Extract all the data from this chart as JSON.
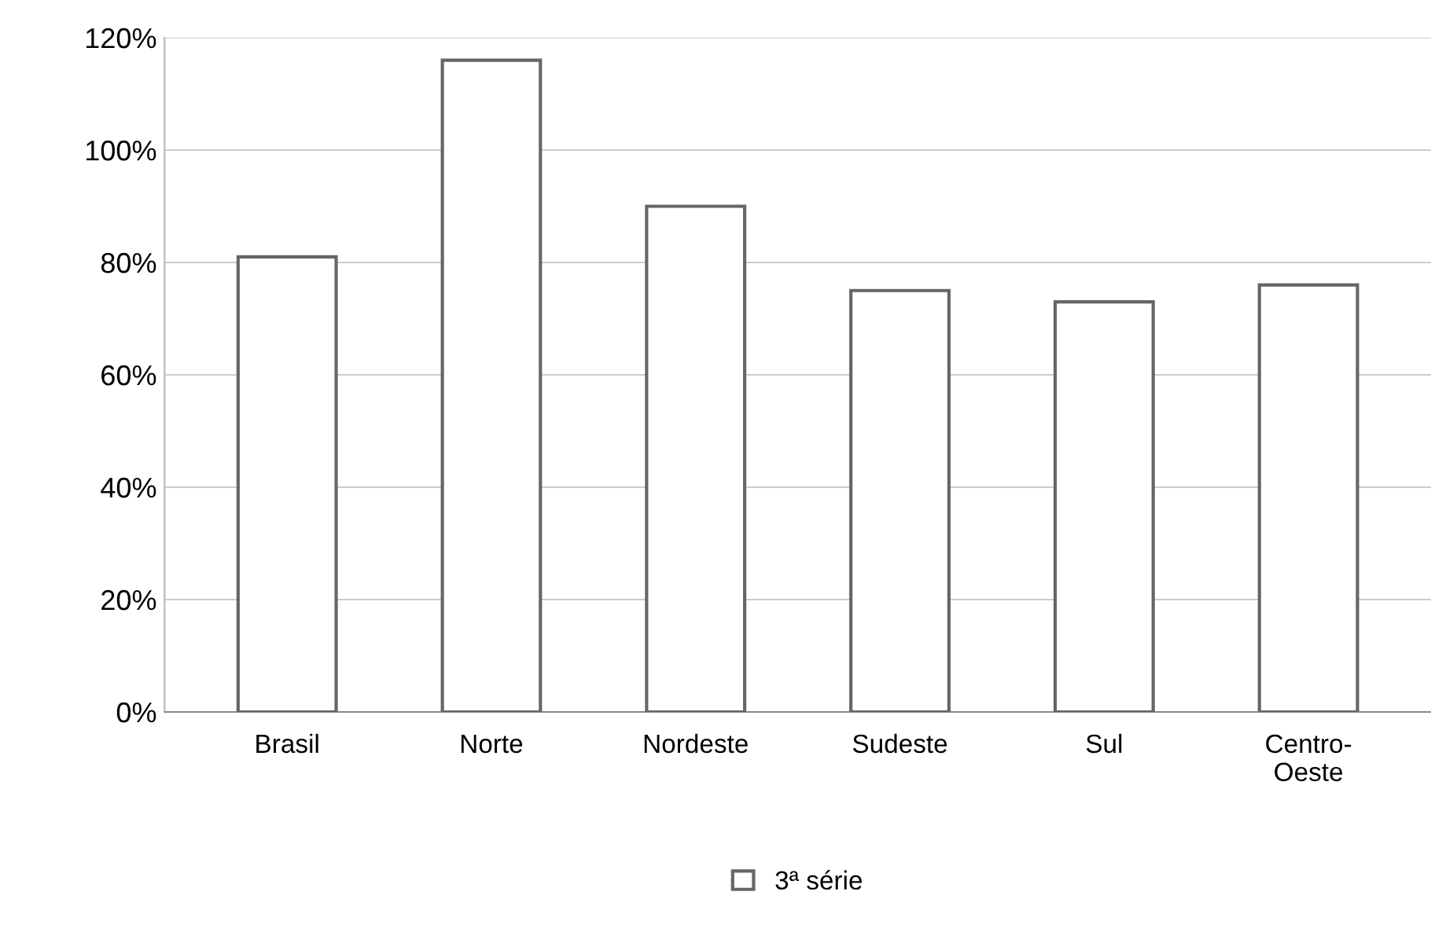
{
  "chart_data": {
    "type": "bar",
    "categories": [
      "Brasil",
      "Norte",
      "Nordeste",
      "Sudeste",
      "Sul",
      "Centro-\nOeste"
    ],
    "series": [
      {
        "name": "3ª série",
        "color": "#ffffff",
        "values": [
          81,
          116,
          90,
          75,
          73,
          76
        ]
      }
    ],
    "ylim": [
      0,
      120
    ],
    "yticks": [
      {
        "value": 0,
        "label": "0%"
      },
      {
        "value": 20,
        "label": "20%"
      },
      {
        "value": 40,
        "label": "40%"
      },
      {
        "value": 60,
        "label": "60%"
      },
      {
        "value": 80,
        "label": "80%"
      },
      {
        "value": 100,
        "label": "100%"
      },
      {
        "value": 120,
        "label": "120%"
      }
    ],
    "grid": "y",
    "legend": "bottom"
  }
}
